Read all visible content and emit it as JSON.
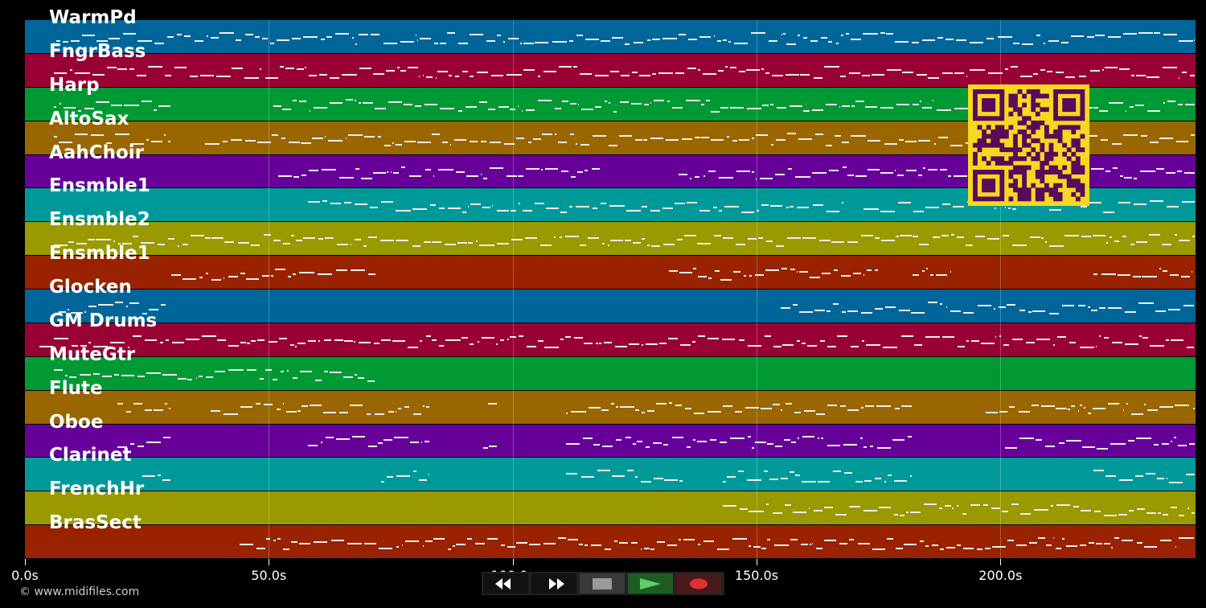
{
  "tracks": [
    {
      "name": "WarmPd",
      "color": "#006699",
      "ranges": [
        [
          6,
          240
        ]
      ]
    },
    {
      "name": "FngrBass",
      "color": "#990033",
      "ranges": [
        [
          6,
          240
        ]
      ]
    },
    {
      "name": "Harp",
      "color": "#009933",
      "ranges": [
        [
          6,
          30
        ],
        [
          51,
          95
        ],
        [
          95,
          240
        ]
      ]
    },
    {
      "name": "AltoSax",
      "color": "#996600",
      "ranges": [
        [
          6,
          30
        ],
        [
          37,
          240
        ]
      ]
    },
    {
      "name": "AahChoir",
      "color": "#660099",
      "ranges": [
        [
          52,
          118
        ],
        [
          134,
          240
        ]
      ]
    },
    {
      "name": "Ensmble1",
      "color": "#009999",
      "ranges": [
        [
          58,
          168
        ],
        [
          172,
          240
        ]
      ]
    },
    {
      "name": "Ensmble2",
      "color": "#999900",
      "ranges": [
        [
          6,
          240
        ]
      ]
    },
    {
      "name": "Ensmble1",
      "color": "#992200",
      "ranges": [
        [
          30,
          72
        ],
        [
          132,
          175
        ],
        [
          182,
          190
        ],
        [
          219,
          240
        ]
      ]
    },
    {
      "name": "Glocken",
      "color": "#006699",
      "ranges": [
        [
          7,
          29
        ],
        [
          155,
          240
        ]
      ]
    },
    {
      "name": "GM Drums",
      "color": "#990033",
      "ranges": [
        [
          3,
          240
        ]
      ]
    },
    {
      "name": "MuteGtr",
      "color": "#009933",
      "ranges": [
        [
          6,
          72
        ]
      ]
    },
    {
      "name": "Flute",
      "color": "#996600",
      "ranges": [
        [
          19,
          30
        ],
        [
          38,
          83
        ],
        [
          95,
          97
        ],
        [
          111,
          182
        ],
        [
          197,
          240
        ]
      ]
    },
    {
      "name": "Oboe",
      "color": "#660099",
      "ranges": [
        [
          19,
          30
        ],
        [
          58,
          83
        ],
        [
          94,
          97
        ],
        [
          111,
          182
        ],
        [
          201,
          240
        ]
      ]
    },
    {
      "name": "Clarinet",
      "color": "#009999",
      "ranges": [
        [
          24,
          30
        ],
        [
          73,
          83
        ],
        [
          111,
          135
        ],
        [
          143,
          182
        ],
        [
          219,
          240
        ]
      ]
    },
    {
      "name": "FrenchHr",
      "color": "#999900",
      "ranges": [
        [
          143,
          240
        ]
      ]
    },
    {
      "name": "BrasSect",
      "color": "#992200",
      "ranges": [
        [
          44,
          240
        ]
      ]
    }
  ],
  "axis": {
    "max_seconds": 240,
    "ticks": [
      {
        "value": 0,
        "label": "0.0s"
      },
      {
        "value": 50,
        "label": "50.0s"
      },
      {
        "value": 100,
        "label": "100.0s"
      },
      {
        "value": 150,
        "label": "150.0s"
      },
      {
        "value": 200,
        "label": "200.0s"
      }
    ]
  },
  "copyright": "© www.midifiles.com",
  "transport": {
    "rewind": "rewind-icon",
    "fast_forward": "fast-forward-icon",
    "stop": "stop-icon",
    "play": "play-icon",
    "record": "record-icon"
  },
  "qr_colors": {
    "fg": "#5a0a5a",
    "bg": "#f5d821"
  }
}
